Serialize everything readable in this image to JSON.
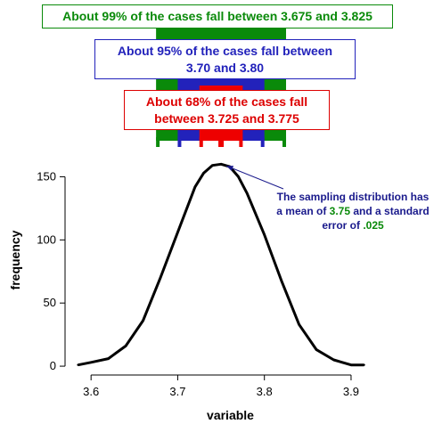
{
  "colors": {
    "green": "#0a8a0a",
    "blue": "#2222bb",
    "red": "#ee0000",
    "navy": "#1a1a8c",
    "curve": "#000000"
  },
  "labels": {
    "p99": "About 99% of the cases fall between 3.675 and 3.825",
    "p95_line1": "About 95% of the cases fall between",
    "p95_line2": "3.70 and 3.80",
    "p68_line1": "About 68% of the cases fall",
    "p68_line2": "between 3.725 and 3.775"
  },
  "annotation": {
    "line1": "The sampling distribution has",
    "line2_pre": "a mean of ",
    "mean": "3.75",
    "line2_post": " and a standard",
    "line3_pre": "error of ",
    "se": ".025"
  },
  "intervals": [
    {
      "name": "99%",
      "low": 3.675,
      "high": 3.825,
      "color": "#0a8a0a"
    },
    {
      "name": "95%",
      "low": 3.7,
      "high": 3.8,
      "color": "#2222bb"
    },
    {
      "name": "68%",
      "low": 3.725,
      "high": 3.775,
      "color": "#ee0000"
    }
  ],
  "chart_data": {
    "type": "line",
    "xlabel": "variable",
    "ylabel": "frequency",
    "xlim": [
      3.57,
      3.935
    ],
    "ylim": [
      -7,
      175
    ],
    "xticks": [
      3.6,
      3.7,
      3.8,
      3.9
    ],
    "xtick_labels": [
      "3.6",
      "3.7",
      "3.8",
      "3.9"
    ],
    "yticks": [
      0,
      50,
      100,
      150
    ],
    "ytick_labels": [
      "0",
      "50",
      "100",
      "150"
    ],
    "series": [
      {
        "x": [
          3.585,
          3.6,
          3.62,
          3.64,
          3.66,
          3.68,
          3.7,
          3.72,
          3.73,
          3.74,
          3.75,
          3.76,
          3.77,
          3.78,
          3.8,
          3.82,
          3.84,
          3.86,
          3.88,
          3.9,
          3.915
        ],
        "y": [
          1,
          3,
          6,
          16,
          36,
          70,
          106,
          142,
          153,
          159,
          160,
          158,
          150,
          137,
          104,
          67,
          33,
          13,
          5,
          1,
          1
        ]
      }
    ]
  }
}
